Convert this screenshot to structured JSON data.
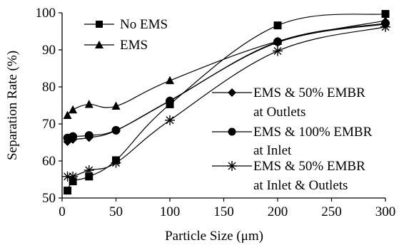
{
  "chart_data": {
    "type": "line",
    "title": "",
    "xlabel": "Particle Size (μm)",
    "ylabel": "Separation Rate (%)",
    "xlim": [
      0,
      300
    ],
    "ylim": [
      50,
      100
    ],
    "xticks": [
      "0",
      "50",
      "100",
      "150",
      "200",
      "250",
      "300"
    ],
    "yticks": [
      "50",
      "60",
      "70",
      "80",
      "90",
      "100"
    ],
    "grid": false,
    "legend_placement": "inside, top-left and right-middle",
    "series": [
      {
        "name": "No EMS",
        "marker": "square",
        "x": [
          5,
          10,
          25,
          50,
          100,
          200,
          300
        ],
        "y": [
          52,
          54.5,
          55.8,
          60.2,
          75.3,
          96.6,
          99.7
        ]
      },
      {
        "name": "EMS",
        "marker": "triangle",
        "x": [
          5,
          10,
          25,
          50,
          100,
          200,
          300
        ],
        "y": [
          72.3,
          73.8,
          75.3,
          74.8,
          81.7,
          92.3,
          97.9
        ]
      },
      {
        "name": "EMS & 50% EMBR at Outlets",
        "marker": "diamond",
        "x": [
          5,
          10,
          25,
          50,
          100,
          200,
          300
        ],
        "y": [
          65.2,
          65.8,
          66.3,
          68.2,
          76.3,
          92,
          97
        ]
      },
      {
        "name": "EMS & 100% EMBR at Inlet",
        "marker": "circle",
        "x": [
          5,
          10,
          25,
          50,
          100,
          200,
          300
        ],
        "y": [
          66.2,
          66.6,
          66.9,
          68.3,
          76.2,
          92.2,
          97.2
        ]
      },
      {
        "name": "EMS & 50% EMBR at Inlet & Outlets",
        "marker": "star",
        "x": [
          5,
          10,
          25,
          50,
          100,
          200,
          300
        ],
        "y": [
          55.8,
          55.8,
          57.5,
          59.5,
          71,
          89.7,
          96.2
        ]
      }
    ]
  },
  "legend": {
    "no_ems": "No EMS",
    "ems": "EMS",
    "outlets_line1": "EMS & 50% EMBR",
    "outlets_line2": "at Outlets",
    "inlet_line1": "EMS & 100% EMBR",
    "inlet_line2": "at Inlet",
    "inout_line1": "EMS & 50% EMBR",
    "inout_line2": "at Inlet & Outlets"
  }
}
